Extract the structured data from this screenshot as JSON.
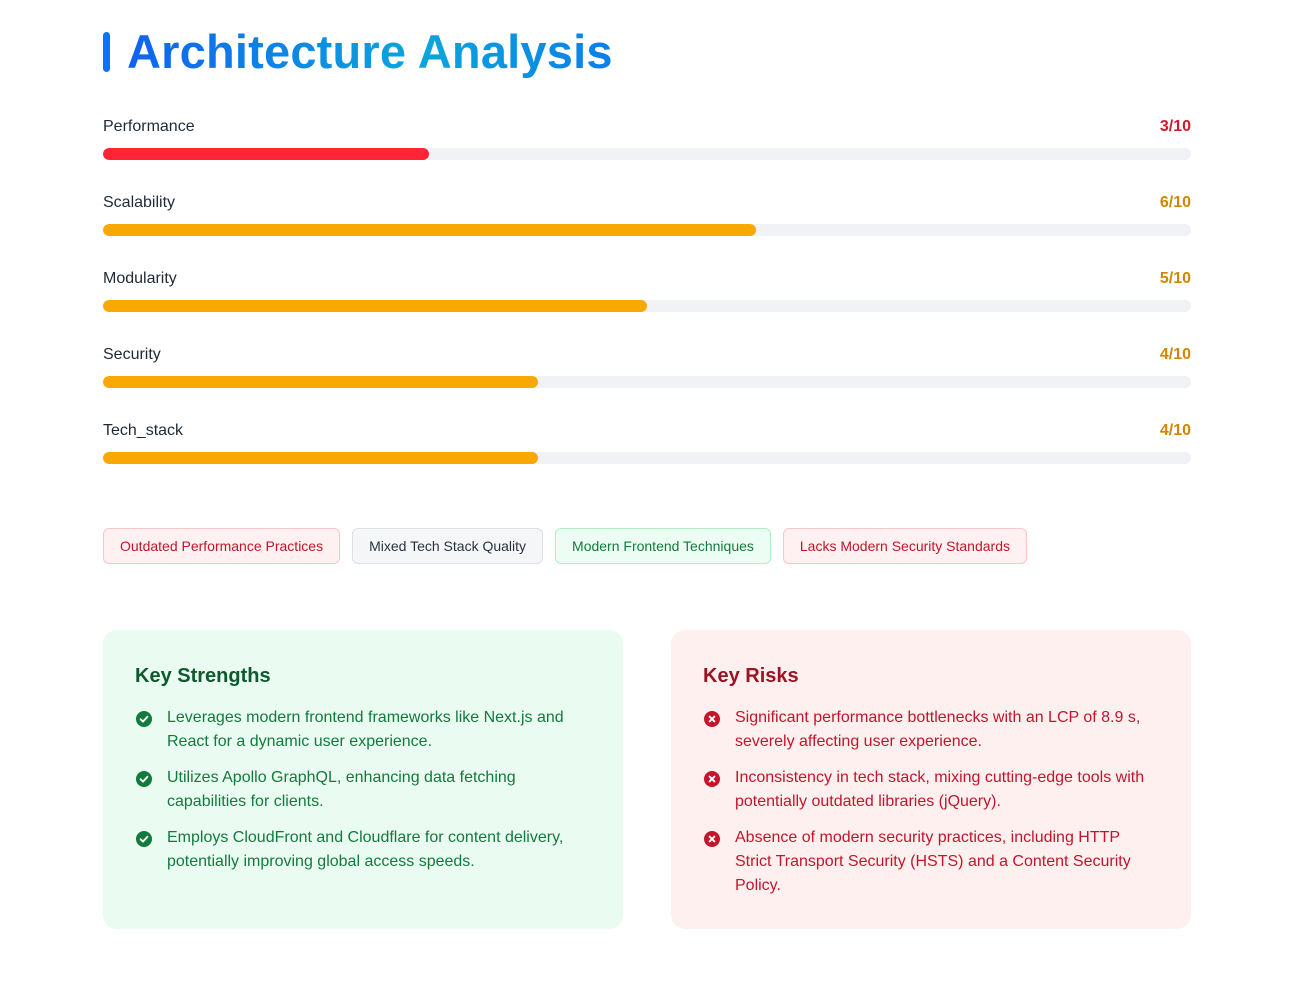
{
  "header": {
    "title": "Architecture Analysis"
  },
  "metrics": [
    {
      "label": "Performance",
      "score": "3/10",
      "value": 3,
      "max": 10,
      "color": "#ff2535",
      "score_color": "#d4192b"
    },
    {
      "label": "Scalability",
      "score": "6/10",
      "value": 6,
      "max": 10,
      "color": "#f8a800",
      "score_color": "#d08600"
    },
    {
      "label": "Modularity",
      "score": "5/10",
      "value": 5,
      "max": 10,
      "color": "#f8a800",
      "score_color": "#d08600"
    },
    {
      "label": "Security",
      "score": "4/10",
      "value": 4,
      "max": 10,
      "color": "#f8a800",
      "score_color": "#d08600"
    },
    {
      "label": "Tech_stack",
      "score": "4/10",
      "value": 4,
      "max": 10,
      "color": "#f8a800",
      "score_color": "#d08600"
    }
  ],
  "tags": [
    {
      "label": "Outdated Performance Practices",
      "variant": "red"
    },
    {
      "label": "Mixed Tech Stack Quality",
      "variant": "gray"
    },
    {
      "label": "Modern Frontend Techniques",
      "variant": "green"
    },
    {
      "label": "Lacks Modern Security Standards",
      "variant": "red"
    }
  ],
  "strengths": {
    "title": "Key Strengths",
    "icon": "check-circle-icon",
    "items": [
      "Leverages modern frontend frameworks like Next.js and React for a dynamic user experience.",
      "Utilizes Apollo GraphQL, enhancing data fetching capabilities for clients.",
      "Employs CloudFront and Cloudflare for content delivery, potentially improving global access speeds."
    ]
  },
  "risks": {
    "title": "Key Risks",
    "icon": "x-circle-icon",
    "items": [
      "Significant performance bottlenecks with an LCP of 8.9 s, severely affecting user experience.",
      "Inconsistency in tech stack, mixing cutting-edge tools with potentially outdated libraries (jQuery).",
      "Absence of modern security practices, including HTTP Strict Transport Security (HSTS) and a Content Security Policy."
    ]
  },
  "colors": {
    "accent": "#0a74ff",
    "strength_text": "#137a3d",
    "risk_text": "#c3152b"
  }
}
